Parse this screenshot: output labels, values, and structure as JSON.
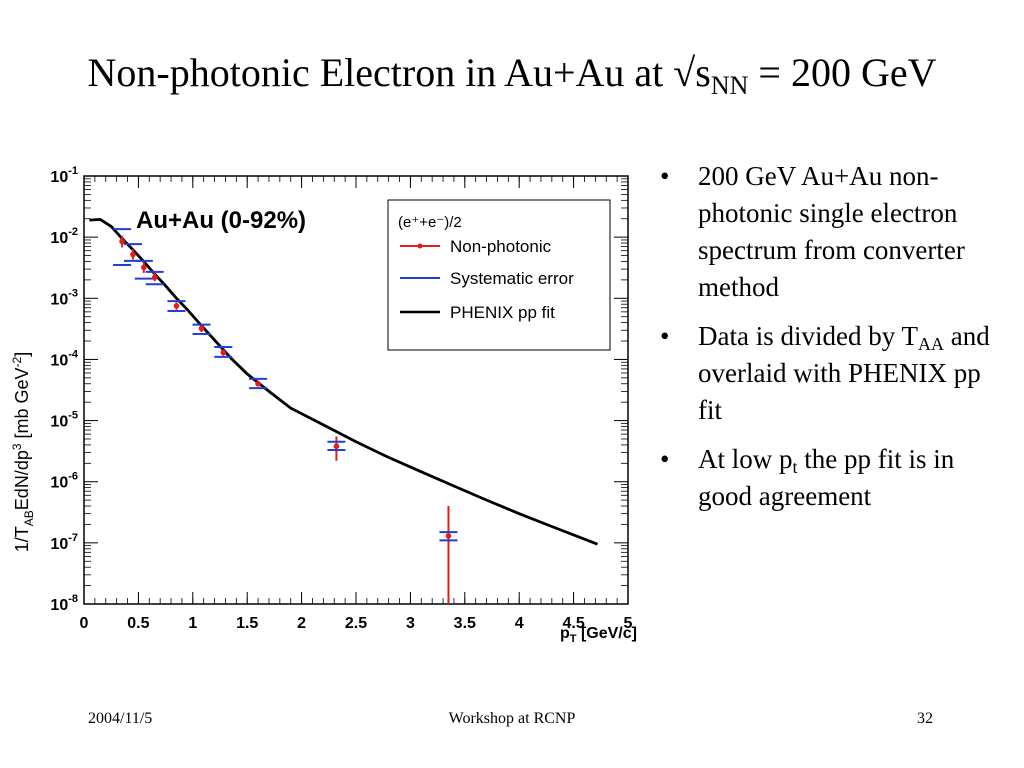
{
  "slide": {
    "title_main": "Non-photonic Electron in Au+Au at √s",
    "title_sub": "NN",
    "title_tail": " = 200 GeV"
  },
  "bullets": [
    {
      "text": "200 GeV Au+Au non-photonic single electron spectrum from converter method"
    },
    {
      "pre": "Data is divided by T",
      "sub": "AA",
      "post": " and overlaid with PHENIX pp fit"
    },
    {
      "pre": "At low p",
      "sub": "t",
      "post": " the pp fit is in good agreement"
    }
  ],
  "footer": {
    "date": "2004/11/5",
    "center": "Workshop at RCNP",
    "page": "32"
  },
  "chart_data": {
    "type": "scatter",
    "title": "Au+Au (0-92%)",
    "xlabel": "p_T [GeV/c]",
    "ylabel": "1/T_AB EdN/dp^3 [mb GeV^-2]",
    "xlim": [
      0,
      5
    ],
    "ylim": [
      1e-08,
      0.1
    ],
    "yscale": "log",
    "xticks": [
      "0",
      "0.5",
      "1",
      "1.5",
      "2",
      "2.5",
      "3",
      "3.5",
      "4",
      "4.5",
      "5"
    ],
    "yticks": [
      "10^-8",
      "10^-7",
      "10^-6",
      "10^-5",
      "10^-4",
      "10^-3",
      "10^-2",
      "10^-1"
    ],
    "legend": {
      "header": "(e⁺+e⁻)/2",
      "placement": "top-right",
      "entries": [
        {
          "label": "Non-photonic",
          "color": "#e41a1c"
        },
        {
          "label": "Systematic error",
          "color": "#1f3fd6"
        },
        {
          "label": "PHENIX pp fit",
          "color": "#000000"
        }
      ]
    },
    "series": [
      {
        "name": "Non-photonic",
        "color": "#e41a1c",
        "points": [
          {
            "x": 0.35,
            "y": 0.0085,
            "ylo": 0.0068,
            "yhi": 0.0105,
            "syslo": 0.0035,
            "syshi": 0.0135
          },
          {
            "x": 0.45,
            "y": 0.0052,
            "ylo": 0.0043,
            "yhi": 0.0063,
            "syslo": 0.0041,
            "syshi": 0.0077
          },
          {
            "x": 0.55,
            "y": 0.0032,
            "ylo": 0.0026,
            "yhi": 0.0039,
            "syslo": 0.0021,
            "syshi": 0.0041
          },
          {
            "x": 0.65,
            "y": 0.0022,
            "ylo": 0.0019,
            "yhi": 0.0026,
            "syslo": 0.0017,
            "syshi": 0.0027
          },
          {
            "x": 0.85,
            "y": 0.00075,
            "ylo": 0.00065,
            "yhi": 0.00086,
            "syslo": 0.00062,
            "syshi": 0.0009
          },
          {
            "x": 1.08,
            "y": 0.00032,
            "ylo": 0.00028,
            "yhi": 0.00036,
            "syslo": 0.00026,
            "syshi": 0.00037
          },
          {
            "x": 1.28,
            "y": 0.00013,
            "ylo": 0.000115,
            "yhi": 0.000145,
            "syslo": 0.00011,
            "syshi": 0.00016
          },
          {
            "x": 1.6,
            "y": 4e-05,
            "ylo": 3.6e-05,
            "yhi": 4.5e-05,
            "syslo": 3.4e-05,
            "syshi": 4.8e-05
          },
          {
            "x": 2.32,
            "y": 3.8e-06,
            "ylo": 2.2e-06,
            "yhi": 5.5e-06,
            "syslo": 3.3e-06,
            "syshi": 4.5e-06
          },
          {
            "x": 3.35,
            "y": 1.3e-07,
            "ylo": 1e-08,
            "yhi": 4e-07,
            "syslo": 1.1e-07,
            "syshi": 1.5e-07
          }
        ]
      },
      {
        "name": "PHENIX pp fit",
        "color": "#000000",
        "curve": [
          [
            0.05,
            0.019
          ],
          [
            0.15,
            0.0195
          ],
          [
            0.25,
            0.015
          ],
          [
            0.35,
            0.0095
          ],
          [
            0.45,
            0.0062
          ],
          [
            0.55,
            0.004
          ],
          [
            0.65,
            0.0025
          ],
          [
            0.75,
            0.0016
          ],
          [
            0.85,
            0.001
          ],
          [
            0.95,
            0.00065
          ],
          [
            1.05,
            0.00041
          ],
          [
            1.15,
            0.00026
          ],
          [
            1.25,
            0.000165
          ],
          [
            1.35,
            0.000105
          ],
          [
            1.5,
            5.8e-05
          ],
          [
            1.7,
            3e-05
          ],
          [
            1.9,
            1.6e-05
          ],
          [
            2.2,
            8.5e-06
          ],
          [
            2.5,
            4.5e-06
          ],
          [
            2.8,
            2.5e-06
          ],
          [
            3.1,
            1.45e-06
          ],
          [
            3.4,
            8.5e-07
          ],
          [
            3.7,
            5e-07
          ],
          [
            4.0,
            3e-07
          ],
          [
            4.3,
            1.85e-07
          ],
          [
            4.5,
            1.35e-07
          ],
          [
            4.72,
            9.5e-08
          ]
        ]
      }
    ]
  }
}
